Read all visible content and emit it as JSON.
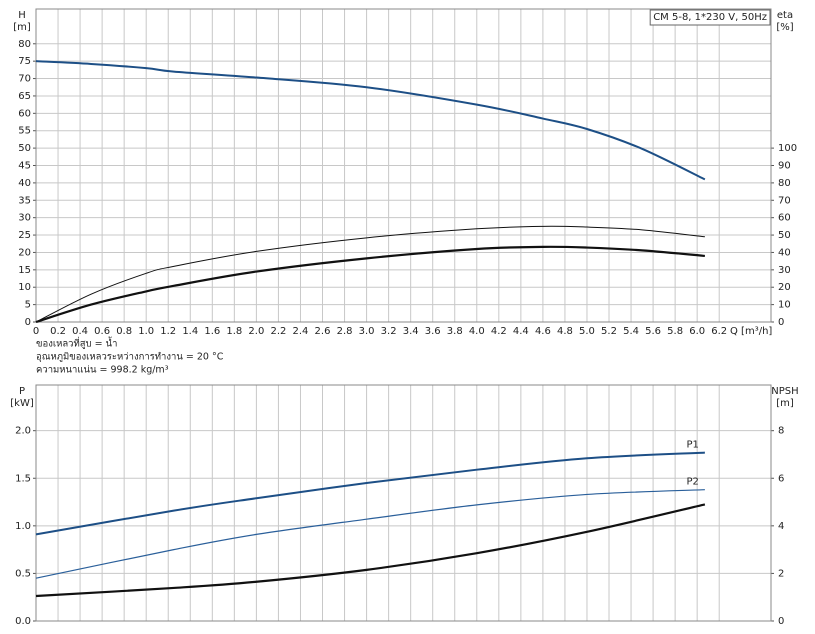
{
  "chart_data": [
    {
      "type": "line",
      "title": "CM 5-8, 1*230 V, 50Hz",
      "y_label": "H",
      "y_unit": "[m]",
      "y2_label": "eta",
      "y2_unit": "[%]",
      "x_label": "Q [m³/h]",
      "notes": [
        "ของเหลวที่สูบ = น้ำ",
        "อุณหภูมิของเหลวระหว่างการทำงาน = 20 °C",
        "ความหนาแน่น = 998.2 kg/m³"
      ],
      "xlim": [
        0,
        6.67
      ],
      "xticks": [
        0,
        0.2,
        0.4,
        0.6,
        0.8,
        {
          "value": 1,
          "label": "1.0"
        },
        1.2,
        1.4,
        1.6,
        1.8,
        {
          "value": 2,
          "label": "2.0"
        },
        2.2,
        2.4,
        2.6,
        2.8,
        {
          "value": 3,
          "label": "3.0"
        },
        3.2,
        3.4,
        3.6,
        3.8,
        {
          "value": 4,
          "label": "4.0"
        },
        4.2,
        4.4,
        4.6,
        4.8,
        {
          "value": 5,
          "label": "5.0"
        },
        5.2,
        5.4,
        5.6,
        5.8,
        {
          "value": 6,
          "label": "6.0"
        },
        6.2
      ],
      "ylim": [
        0,
        90
      ],
      "yticks": [
        0,
        5,
        10,
        15,
        20,
        25,
        30,
        35,
        40,
        45,
        50,
        55,
        60,
        65,
        70,
        75,
        80
      ],
      "y2lim": [
        0,
        180
      ],
      "y2ticks": [
        0,
        10,
        20,
        30,
        40,
        50,
        60,
        70,
        80,
        90,
        100
      ],
      "grid": true,
      "x": [
        0,
        0.5,
        1,
        1.25,
        2,
        3,
        4,
        4.6,
        5,
        5.5,
        6.07
      ],
      "series": [
        {
          "color": "#1d4f86",
          "line_width": 2,
          "values": [
            75,
            74.2,
            73,
            72,
            70.3,
            67.5,
            62.5,
            58.5,
            55.5,
            49.8,
            41
          ]
        },
        {
          "color": "#111111",
          "line_width": 1,
          "axis": "y2",
          "values": [
            0,
            16,
            28,
            32,
            40.6,
            48.4,
            53.6,
            55,
            54.6,
            53,
            49
          ]
        },
        {
          "color": "#111111",
          "line_width": 2.2,
          "axis": "y2",
          "values": [
            0,
            10,
            17.6,
            20.8,
            29,
            36.6,
            42,
            43.2,
            42.8,
            41.2,
            38
          ]
        }
      ]
    },
    {
      "type": "line",
      "y_label": "P",
      "y_unit": "[kW]",
      "y2_label": "NPSH",
      "y2_unit": "[m]",
      "xlim": [
        0,
        6.67
      ],
      "ylim": [
        0,
        2.48
      ],
      "yticks": [
        {
          "value": 0,
          "label": "0.0"
        },
        0.5,
        {
          "value": 1,
          "label": "1.0"
        },
        1.5,
        {
          "value": 2,
          "label": "2.0"
        }
      ],
      "y2lim": [
        0,
        9.92
      ],
      "y2ticks": [
        0,
        2,
        4,
        6,
        8
      ],
      "grid": true,
      "x": [
        0,
        1.25,
        2,
        3,
        4,
        5,
        6.07
      ],
      "series": [
        {
          "name": "P1",
          "color": "#1d4f86",
          "line_width": 2,
          "values": [
            0.91,
            1.16,
            1.29,
            1.45,
            1.59,
            1.71,
            1.77
          ]
        },
        {
          "name": "P2",
          "color": "#2a5f9a",
          "line_width": 1.2,
          "values": [
            0.45,
            0.75,
            0.91,
            1.07,
            1.22,
            1.33,
            1.38
          ]
        },
        {
          "color": "#111111",
          "line_width": 2.2,
          "axis": "y2",
          "values": [
            1.05,
            1.39,
            1.65,
            2.15,
            2.85,
            3.75,
            4.9
          ]
        }
      ]
    }
  ]
}
